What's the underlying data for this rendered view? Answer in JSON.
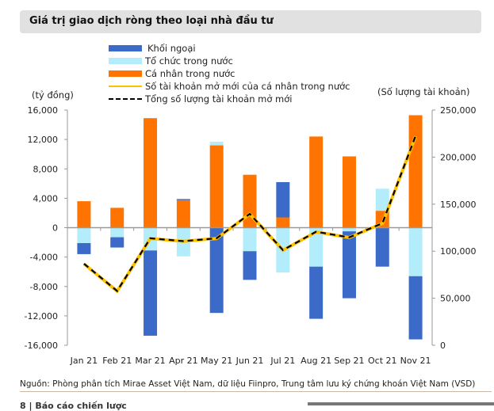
{
  "header": {
    "title": "Giá trị giao dịch ròng theo loại nhà đầu tư"
  },
  "chart_data": {
    "type": "bar",
    "stacked": true,
    "categories": [
      "Jan 21",
      "Feb 21",
      "Mar 21",
      "Apr 21",
      "May 21",
      "Jun 21",
      "Jul 21",
      "Aug 21",
      "Sep 21",
      "Oct 21",
      "Nov 21"
    ],
    "ylabel": "(tỷ đồng)",
    "y2label": "(Số lượng tài khoản)",
    "ylim": [
      -16000,
      16000
    ],
    "y2lim": [
      0,
      250000
    ],
    "yticks": [
      "16,000",
      "12,000",
      "8,000",
      "4,000",
      "0",
      "-4,000",
      "-8,000",
      "-12,000",
      "-16,000"
    ],
    "y2ticks": [
      "250,000",
      "200,000",
      "150,000",
      "100,000",
      "50,000",
      "0"
    ],
    "legend": "top",
    "grid": false,
    "series": [
      {
        "name": "Khối ngoại",
        "kind": "bar",
        "color": "#3b6ac9",
        "values": [
          -1500,
          -1400,
          -11600,
          150,
          -11600,
          -3900,
          4800,
          -7100,
          -9100,
          -5300,
          -8600
        ]
      },
      {
        "name": "Tổ chức trong nước",
        "kind": "bar",
        "color": "#b3ecfb",
        "values": [
          -2100,
          -1300,
          -3100,
          -3900,
          500,
          -3200,
          -6100,
          -5300,
          -500,
          3000,
          -6600
        ]
      },
      {
        "name": "Cá nhân trong nước",
        "kind": "bar",
        "color": "#ff7300",
        "values": [
          3600,
          2700,
          14900,
          3750,
          11200,
          7200,
          1400,
          12400,
          9700,
          2300,
          15300
        ]
      },
      {
        "name": "Số tài khoản mở mới của cá nhân trong nước",
        "kind": "line",
        "axis": "right",
        "color": "#ffc000",
        "values": [
          86500,
          57500,
          113500,
          110500,
          113500,
          139500,
          101000,
          120500,
          114500,
          129500,
          222000
        ]
      },
      {
        "name": "Tổng số lượng tài khoản mở mới",
        "kind": "dashed-line",
        "axis": "right",
        "color": "#000000",
        "values": [
          86700,
          57700,
          113700,
          110700,
          113700,
          139700,
          101200,
          120700,
          114700,
          129700,
          222500
        ]
      }
    ]
  },
  "source": "Nguồn: Phòng phân tích Mirae Asset Việt Nam, dữ liệu Fiinpro, Trung tâm lưu ký chứng khoán Việt Nam (VSD)",
  "footer": "8 | Báo cáo chiến lược"
}
